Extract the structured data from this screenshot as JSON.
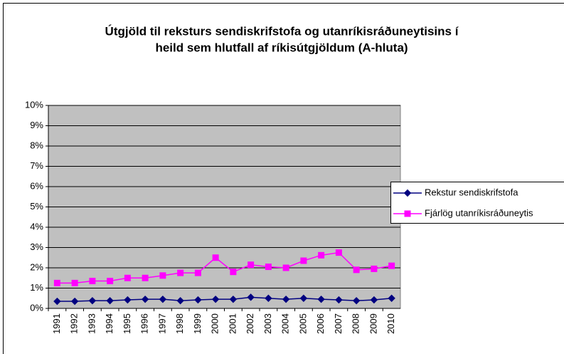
{
  "chart_data": {
    "type": "line",
    "title": [
      "Útgjöld til reksturs sendiskrifstofa og utanríkisráðuneytisins í",
      "heild sem hlutfall af ríkisútgjöldum (A-hluta)"
    ],
    "categories": [
      "1991",
      "1992",
      "1993",
      "1994",
      "1995",
      "1996",
      "1997",
      "1998",
      "1999",
      "2000",
      "2001",
      "2002",
      "2003",
      "2004",
      "2005",
      "2006",
      "2007",
      "2008",
      "2009",
      "2010"
    ],
    "series": [
      {
        "name": "Rekstur sendiskrifstofa",
        "color": "#000080",
        "marker": "diamond",
        "values": [
          0.35,
          0.35,
          0.38,
          0.38,
          0.42,
          0.45,
          0.45,
          0.38,
          0.42,
          0.45,
          0.45,
          0.55,
          0.5,
          0.45,
          0.5,
          0.45,
          0.42,
          0.38,
          0.42,
          0.5
        ]
      },
      {
        "name": "Fjárlög utanríkisráðuneytis",
        "color": "#ff00ff",
        "marker": "square",
        "values": [
          1.25,
          1.25,
          1.35,
          1.35,
          1.5,
          1.5,
          1.62,
          1.75,
          1.75,
          2.5,
          1.8,
          2.15,
          2.05,
          2.0,
          2.35,
          2.62,
          2.75,
          1.9,
          1.95,
          2.1
        ]
      }
    ],
    "ylim": [
      0,
      10
    ],
    "yticks": [
      {
        "value": 0,
        "label": "0%"
      },
      {
        "value": 1,
        "label": "1%"
      },
      {
        "value": 2,
        "label": "2%"
      },
      {
        "value": 3,
        "label": "3%"
      },
      {
        "value": 4,
        "label": "4%"
      },
      {
        "value": 5,
        "label": "5%"
      },
      {
        "value": 6,
        "label": "6%"
      },
      {
        "value": 7,
        "label": "7%"
      },
      {
        "value": 8,
        "label": "8%"
      },
      {
        "value": 9,
        "label": "9%"
      },
      {
        "value": 10,
        "label": "10%"
      }
    ],
    "grid": true,
    "legend": "right"
  }
}
